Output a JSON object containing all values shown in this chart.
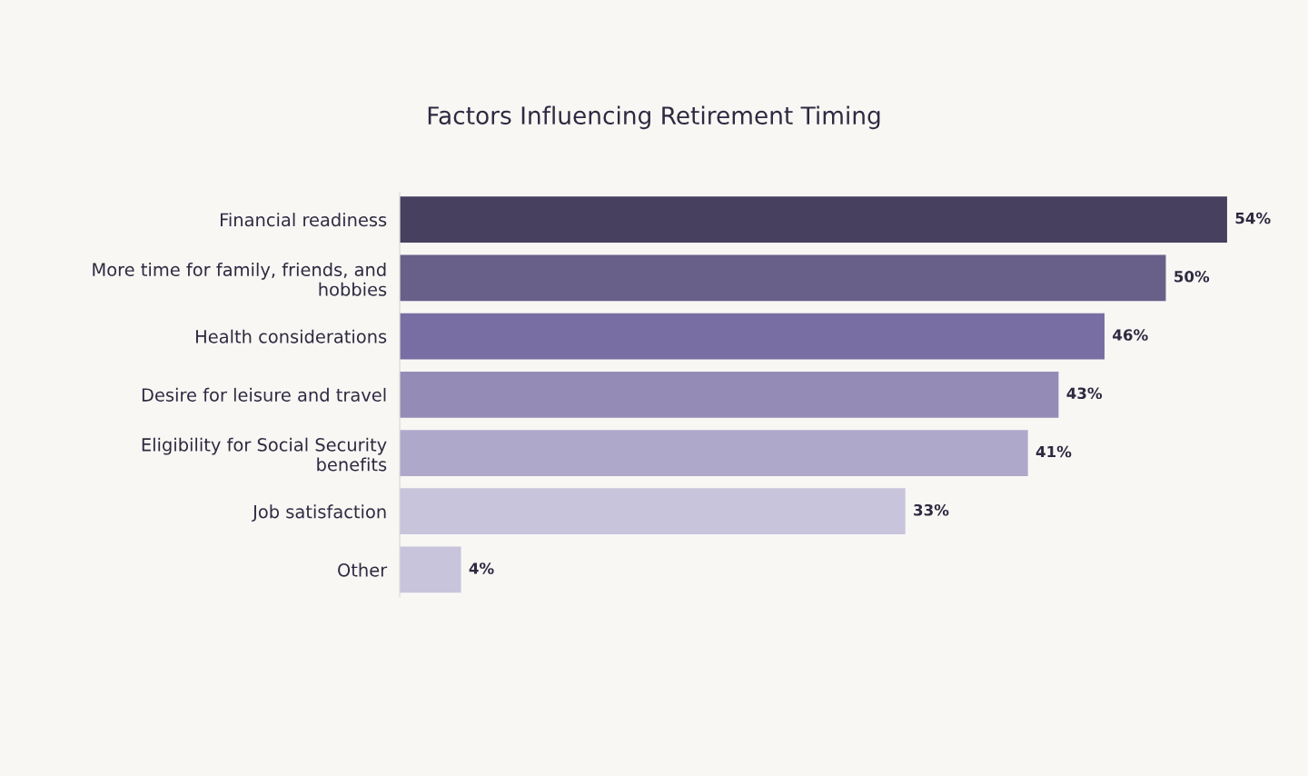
{
  "chart_data": {
    "type": "bar",
    "orientation": "horizontal",
    "title": "Factors Influencing Retirement Timing",
    "categories": [
      "Financial readiness",
      "More time for family, friends, and\nhobbies",
      "Health considerations",
      "Desire for leisure and travel",
      "Eligibility for Social Security\nbenefits",
      "Job satisfaction",
      "Other"
    ],
    "values": [
      54,
      50,
      46,
      43,
      41,
      33,
      4
    ],
    "colors": [
      "#48405f",
      "#686089",
      "#786ea3",
      "#948cb6",
      "#aea8cb",
      "#c8c4dc",
      "#c8c4dc"
    ],
    "value_labels": [
      "54%",
      "50%",
      "46%",
      "43%",
      "41%",
      "33%",
      "4%"
    ],
    "grid": false,
    "legend": false
  }
}
